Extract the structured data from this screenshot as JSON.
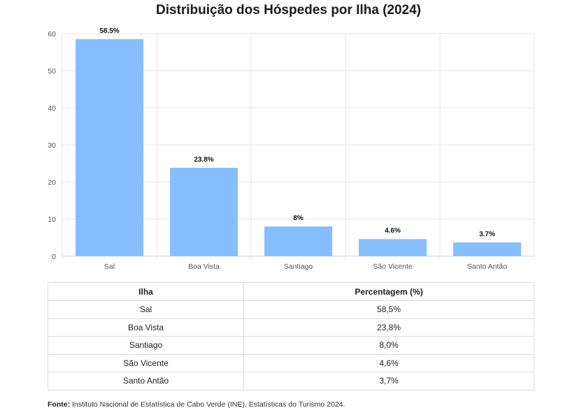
{
  "title": "Distribuição dos Hóspedes por Ilha (2024)",
  "chart_data": {
    "type": "bar",
    "title": "Distribuição dos Hóspedes por Ilha (2024)",
    "categories": [
      "Sal",
      "Boa Vista",
      "Santiago",
      "São Vicente",
      "Santo Antão"
    ],
    "values": [
      58.5,
      23.8,
      8,
      4.6,
      3.7
    ],
    "data_labels": [
      "58.5%",
      "23.8%",
      "8%",
      "4.6%",
      "3.7%"
    ],
    "ylim": [
      0,
      60
    ],
    "yticks": [
      0,
      10,
      20,
      30,
      40,
      50,
      60
    ],
    "xlabel": "",
    "ylabel": "",
    "grid": true,
    "bar_color": "#86bfff"
  },
  "table": {
    "headers": [
      "Ilha",
      "Percentagem (%)"
    ],
    "rows": [
      [
        "Sal",
        "58,5%"
      ],
      [
        "Boa Vista",
        "23,8%"
      ],
      [
        "Santiago",
        "8,0%"
      ],
      [
        "São Vicente",
        "4,6%"
      ],
      [
        "Santo Antão",
        "3,7%"
      ]
    ]
  },
  "source": {
    "label": "Fonte:",
    "text": " Instituto Nacional de Estatística de Cabo Verde (INE), Estatísticas do Turismo 2024."
  }
}
